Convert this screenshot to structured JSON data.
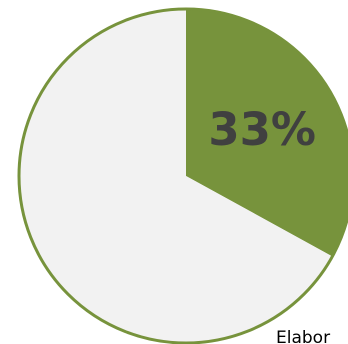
{
  "chart_data": {
    "type": "pie",
    "values": [
      33,
      67
    ],
    "value_labels": [
      "33%",
      null
    ],
    "colors": [
      "#77933c",
      "#f2f2f2"
    ],
    "edge_color": "#77933c",
    "annotation": "Elabor"
  }
}
